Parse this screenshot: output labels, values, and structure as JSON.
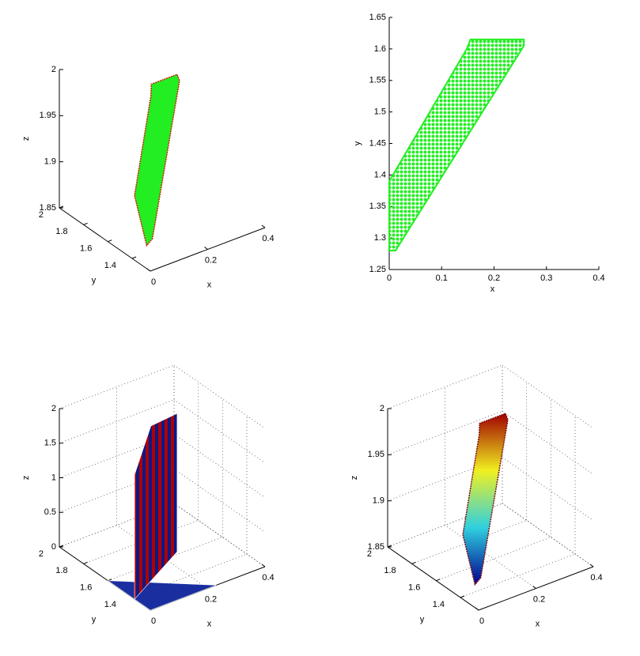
{
  "chart_data": [
    {
      "type": "surface3d",
      "xlabel": "x",
      "ylabel": "y",
      "zlabel": "z",
      "xlim": [
        0,
        0.4
      ],
      "ylim": [
        1.25,
        2
      ],
      "zlim": [
        1.85,
        2
      ],
      "xticks": [
        0,
        0.2,
        0.4
      ],
      "yticks": [
        1.4,
        1.6,
        1.8,
        2
      ],
      "zticks": [
        1.85,
        1.9,
        1.95,
        2
      ],
      "grid": false,
      "surfaces": [
        {
          "x": [
            0,
            0,
            0.15,
            0.16,
            0.25,
            0.25,
            0.02
          ],
          "y": [
            1.28,
            1.38,
            1.6,
            1.62,
            1.62,
            1.6,
            1.28
          ],
          "z": [
            1.875,
            1.92,
            1.99,
            2,
            2,
            1.995,
            1.88
          ],
          "color": "#22ee22",
          "edge": "#cc2200"
        }
      ]
    },
    {
      "type": "scatter",
      "xlabel": "x",
      "ylabel": "y",
      "xlim": [
        0,
        0.4
      ],
      "ylim": [
        1.25,
        1.65
      ],
      "xticks": [
        0,
        0.1,
        0.2,
        0.3,
        0.4
      ],
      "yticks": [
        1.25,
        1.3,
        1.35,
        1.4,
        1.45,
        1.5,
        1.55,
        1.6,
        1.65
      ],
      "region": {
        "x": [
          0,
          0,
          0.148,
          0.155,
          0.257,
          0.257,
          0.012
        ],
        "y": [
          1.28,
          1.39,
          1.6,
          1.615,
          1.615,
          1.605,
          1.28
        ],
        "color": "#22ee22"
      }
    },
    {
      "type": "surface3d",
      "xlabel": "x",
      "ylabel": "y",
      "zlabel": "z",
      "xlim": [
        0,
        0.4
      ],
      "ylim": [
        1.25,
        2
      ],
      "zlim": [
        0,
        2
      ],
      "xticks": [
        0,
        0.2,
        0.4
      ],
      "yticks": [
        1.4,
        1.6,
        1.8,
        2
      ],
      "zticks": [
        0,
        0.5,
        1,
        1.5,
        2
      ],
      "grid": true,
      "surfaces": [
        {
          "x": [
            0,
            0.23,
            0
          ],
          "y": [
            1.25,
            1.25,
            1.6
          ],
          "z": [
            0,
            0,
            0
          ],
          "color": "#1b2ea0"
        },
        {
          "x": [
            0,
            0,
            0.15,
            0.25,
            0.25
          ],
          "y": [
            1.38,
            1.38,
            1.6,
            1.62,
            1.62
          ],
          "z": [
            0,
            1.8,
            2,
            2,
            0
          ],
          "color": "#b00000",
          "color2": "#0a1a8a"
        }
      ]
    },
    {
      "type": "surface3d",
      "xlabel": "x",
      "ylabel": "y",
      "zlabel": "z",
      "xlim": [
        0,
        0.4
      ],
      "ylim": [
        1.25,
        2
      ],
      "zlim": [
        1.85,
        2
      ],
      "xticks": [
        0,
        0.2,
        0.4
      ],
      "yticks": [
        1.4,
        1.6,
        1.8,
        2
      ],
      "zticks": [
        1.85,
        1.9,
        1.95,
        2
      ],
      "grid": true,
      "surfaces": [
        {
          "x": [
            0,
            0,
            0.15,
            0.16,
            0.25,
            0.25,
            0.02
          ],
          "y": [
            1.28,
            1.38,
            1.6,
            1.62,
            1.62,
            1.6,
            1.28
          ],
          "z": [
            1.875,
            1.92,
            1.99,
            2,
            2,
            1.995,
            1.88
          ],
          "colors": [
            "#00008f",
            "#30d0e0",
            "#f0f020",
            "#a00000"
          ],
          "edge": "#7a1010"
        }
      ]
    }
  ]
}
